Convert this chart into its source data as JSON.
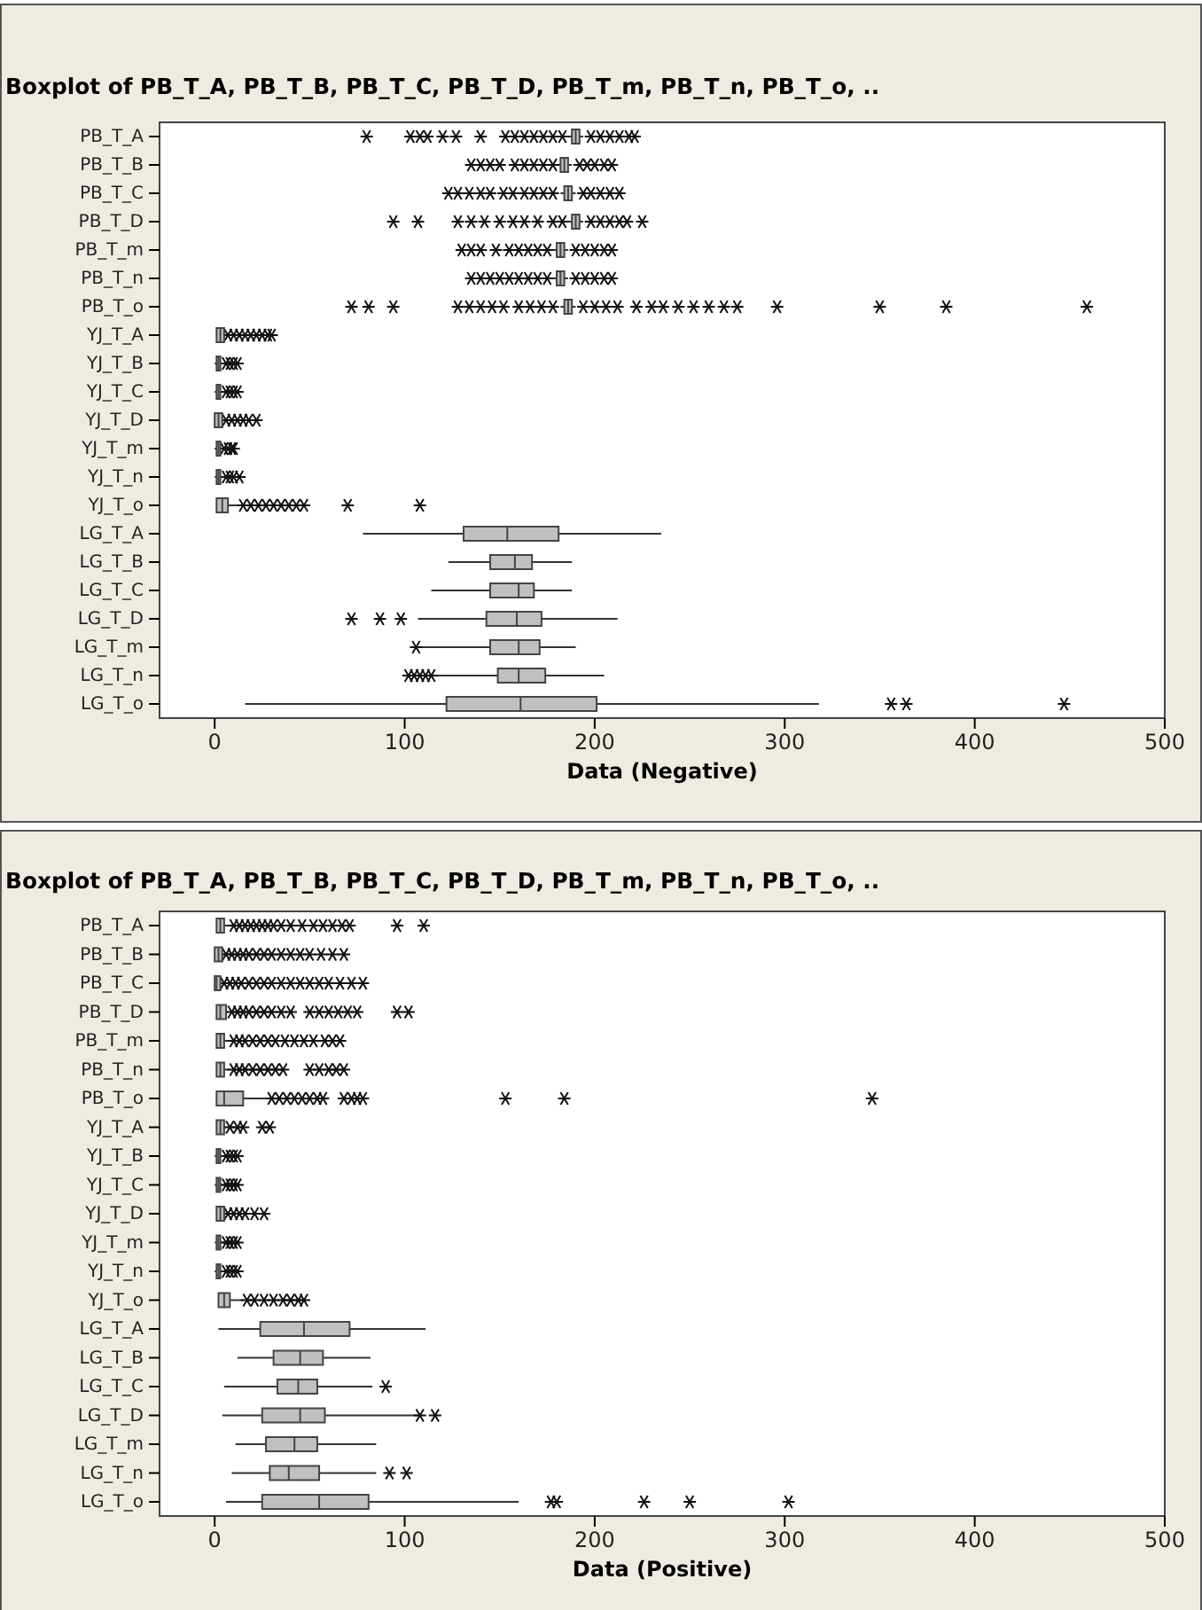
{
  "chart_data": [
    {
      "type": "box",
      "orientation": "horizontal",
      "title": "Boxplot of PB_T_A, PB_T_B, PB_T_C, PB_T_D, PB_T_m, PB_T_n, PB_T_o, ..",
      "xlabel": "Data (Negative)",
      "xlim": [
        -29,
        500
      ],
      "xticks": [
        0,
        100,
        200,
        300,
        400,
        500
      ],
      "categories": [
        "PB_T_A",
        "PB_T_B",
        "PB_T_C",
        "PB_T_D",
        "PB_T_m",
        "PB_T_n",
        "PB_T_o",
        "YJ_T_A",
        "YJ_T_B",
        "YJ_T_C",
        "YJ_T_D",
        "YJ_T_m",
        "YJ_T_n",
        "YJ_T_o",
        "LG_T_A",
        "LG_T_B",
        "LG_T_C",
        "LG_T_D",
        "LG_T_m",
        "LG_T_n",
        "LG_T_o"
      ],
      "boxes": [
        {
          "low": 186,
          "q1": 188,
          "median": 190,
          "q3": 192,
          "high": 194,
          "outliers": [
            80,
            103,
            108,
            112,
            120,
            127,
            140,
            153,
            158,
            163,
            168,
            173,
            178,
            183,
            198,
            203,
            208,
            213,
            218,
            221
          ]
        },
        {
          "low": 180,
          "q1": 182,
          "median": 184,
          "q3": 186,
          "high": 188,
          "outliers": [
            135,
            140,
            145,
            150,
            158,
            163,
            168,
            173,
            178,
            192,
            196,
            200,
            205,
            209
          ]
        },
        {
          "low": 182,
          "q1": 184,
          "median": 186,
          "q3": 188,
          "high": 190,
          "outliers": [
            123,
            128,
            134,
            140,
            145,
            152,
            157,
            163,
            168,
            173,
            178,
            194,
            198,
            203,
            208,
            213
          ]
        },
        {
          "low": 186,
          "q1": 188,
          "median": 190,
          "q3": 192,
          "high": 194,
          "outliers": [
            94,
            107,
            128,
            135,
            142,
            150,
            157,
            163,
            170,
            178,
            183,
            198,
            203,
            208,
            213,
            217,
            225
          ]
        },
        {
          "low": 178,
          "q1": 180,
          "median": 182,
          "q3": 184,
          "high": 186,
          "outliers": [
            130,
            135,
            140,
            148,
            155,
            160,
            165,
            170,
            175,
            190,
            195,
            200,
            205,
            209
          ]
        },
        {
          "low": 178,
          "q1": 180,
          "median": 182,
          "q3": 184,
          "high": 186,
          "outliers": [
            135,
            140,
            145,
            150,
            155,
            160,
            165,
            170,
            175,
            190,
            195,
            200,
            205,
            209
          ]
        },
        {
          "low": 182,
          "q1": 184,
          "median": 186,
          "q3": 188,
          "high": 190,
          "outliers": [
            72,
            81,
            94,
            128,
            134,
            140,
            146,
            152,
            160,
            166,
            172,
            178,
            194,
            200,
            206,
            212,
            222,
            230,
            236,
            244,
            252,
            260,
            268,
            275,
            296,
            350,
            385,
            459
          ]
        },
        {
          "low": 1,
          "q1": 1,
          "median": 3,
          "q3": 5,
          "high": 6,
          "outliers": [
            7,
            10,
            13,
            16,
            19,
            22,
            25,
            28,
            30
          ]
        },
        {
          "low": 0,
          "q1": 1,
          "median": 2,
          "q3": 3,
          "high": 5,
          "outliers": [
            6,
            8,
            10,
            12
          ]
        },
        {
          "low": 0,
          "q1": 1,
          "median": 2,
          "q3": 3,
          "high": 5,
          "outliers": [
            6,
            8,
            10,
            12
          ]
        },
        {
          "low": 0,
          "q1": 0,
          "median": 2,
          "q3": 4,
          "high": 5,
          "outliers": [
            6,
            9,
            12,
            15,
            18,
            22
          ]
        },
        {
          "low": 0,
          "q1": 1,
          "median": 2,
          "q3": 3,
          "high": 4,
          "outliers": [
            5,
            7,
            9,
            10
          ]
        },
        {
          "low": 0,
          "q1": 1,
          "median": 2,
          "q3": 3,
          "high": 5,
          "outliers": [
            6,
            8,
            10,
            13
          ]
        },
        {
          "low": 1,
          "q1": 1,
          "median": 4,
          "q3": 7,
          "high": 13,
          "outliers": [
            15,
            19,
            23,
            27,
            31,
            35,
            39,
            43,
            47,
            70,
            108
          ]
        },
        {
          "low": 78,
          "q1": 131,
          "median": 154,
          "q3": 181,
          "high": 235
        },
        {
          "low": 123,
          "q1": 145,
          "median": 158,
          "q3": 167,
          "high": 188
        },
        {
          "low": 114,
          "q1": 145,
          "median": 160,
          "q3": 168,
          "high": 188
        },
        {
          "low": 107,
          "q1": 143,
          "median": 159,
          "q3": 172,
          "high": 212,
          "outliers": [
            72,
            87,
            98
          ]
        },
        {
          "low": 109,
          "q1": 145,
          "median": 160,
          "q3": 171,
          "high": 190,
          "outliers": [
            106
          ]
        },
        {
          "low": 115,
          "q1": 149,
          "median": 160,
          "q3": 174,
          "high": 205,
          "outliers": [
            102,
            105,
            108,
            111,
            114
          ]
        },
        {
          "low": 16,
          "q1": 122,
          "median": 161,
          "q3": 201,
          "high": 318,
          "outliers": [
            356,
            364,
            447
          ]
        }
      ]
    },
    {
      "type": "box",
      "orientation": "horizontal",
      "title": "Boxplot of PB_T_A, PB_T_B, PB_T_C, PB_T_D, PB_T_m, PB_T_n, PB_T_o, ..",
      "xlabel": "Data (Positive)",
      "xlim": [
        -29,
        500
      ],
      "xticks": [
        0,
        100,
        200,
        300,
        400,
        500
      ],
      "categories": [
        "PB_T_A",
        "PB_T_B",
        "PB_T_C",
        "PB_T_D",
        "PB_T_m",
        "PB_T_n",
        "PB_T_o",
        "YJ_T_A",
        "YJ_T_B",
        "YJ_T_C",
        "YJ_T_D",
        "YJ_T_m",
        "YJ_T_n",
        "YJ_T_o",
        "LG_T_A",
        "LG_T_B",
        "LG_T_C",
        "LG_T_D",
        "LG_T_m",
        "LG_T_n",
        "LG_T_o"
      ],
      "boxes": [
        {
          "low": 1,
          "q1": 1,
          "median": 3,
          "q3": 5,
          "high": 8,
          "outliers": [
            10,
            13,
            16,
            19,
            22,
            25,
            28,
            31,
            35,
            40,
            46,
            52,
            57,
            62,
            67,
            71,
            96,
            110
          ]
        },
        {
          "low": 0,
          "q1": 0,
          "median": 2,
          "q3": 4,
          "high": 5,
          "outliers": [
            6,
            9,
            12,
            15,
            18,
            22,
            26,
            30,
            35,
            40,
            45,
            50,
            56,
            62,
            68
          ]
        },
        {
          "low": 0,
          "q1": 0,
          "median": 1,
          "q3": 3,
          "high": 4,
          "outliers": [
            5,
            8,
            11,
            14,
            18,
            22,
            26,
            30,
            35,
            40,
            45,
            50,
            55,
            60,
            66,
            72,
            78
          ]
        },
        {
          "low": 1,
          "q1": 1,
          "median": 3,
          "q3": 6,
          "high": 7,
          "outliers": [
            9,
            12,
            15,
            18,
            22,
            26,
            30,
            35,
            40,
            50,
            55,
            60,
            65,
            70,
            75,
            96,
            102
          ]
        },
        {
          "low": 1,
          "q1": 1,
          "median": 3,
          "q3": 5,
          "high": 8,
          "outliers": [
            10,
            13,
            16,
            20,
            24,
            28,
            32,
            37,
            42,
            47,
            52,
            58,
            62,
            66
          ]
        },
        {
          "low": 1,
          "q1": 1,
          "median": 3,
          "q3": 5,
          "high": 8,
          "outliers": [
            10,
            13,
            16,
            20,
            24,
            28,
            32,
            36,
            50,
            55,
            60,
            64,
            68
          ]
        },
        {
          "low": 1,
          "q1": 1,
          "median": 5,
          "q3": 15,
          "high": 28,
          "outliers": [
            30,
            34,
            38,
            42,
            46,
            50,
            54,
            57,
            68,
            72,
            75,
            78,
            153,
            184,
            346
          ]
        },
        {
          "low": 1,
          "q1": 1,
          "median": 3,
          "q3": 5,
          "high": 6,
          "outliers": [
            8,
            12,
            15,
            25,
            29
          ]
        },
        {
          "low": 0,
          "q1": 1,
          "median": 2,
          "q3": 3,
          "high": 5,
          "outliers": [
            6,
            8,
            10,
            12
          ]
        },
        {
          "low": 0,
          "q1": 1,
          "median": 2,
          "q3": 3,
          "high": 5,
          "outliers": [
            6,
            8,
            10,
            12
          ]
        },
        {
          "low": 1,
          "q1": 1,
          "median": 3,
          "q3": 5,
          "high": 6,
          "outliers": [
            7,
            10,
            13,
            16,
            21,
            26
          ]
        },
        {
          "low": 0,
          "q1": 1,
          "median": 2,
          "q3": 3,
          "high": 5,
          "outliers": [
            6,
            8,
            10,
            12
          ]
        },
        {
          "low": 0,
          "q1": 1,
          "median": 2,
          "q3": 3,
          "high": 5,
          "outliers": [
            6,
            8,
            10,
            12
          ]
        },
        {
          "low": 2,
          "q1": 2,
          "median": 5,
          "q3": 8,
          "high": 15,
          "outliers": [
            17,
            21,
            26,
            31,
            36,
            40,
            44,
            47
          ]
        },
        {
          "low": 2,
          "q1": 24,
          "median": 47,
          "q3": 71,
          "high": 111
        },
        {
          "low": 12,
          "q1": 31,
          "median": 45,
          "q3": 57,
          "high": 82
        },
        {
          "low": 5,
          "q1": 33,
          "median": 44,
          "q3": 54,
          "high": 83,
          "outliers": [
            90
          ]
        },
        {
          "low": 4,
          "q1": 25,
          "median": 45,
          "q3": 58,
          "high": 107,
          "outliers": [
            108,
            116
          ]
        },
        {
          "low": 11,
          "q1": 27,
          "median": 42,
          "q3": 54,
          "high": 85
        },
        {
          "low": 9,
          "q1": 29,
          "median": 39,
          "q3": 55,
          "high": 85,
          "outliers": [
            92,
            101
          ]
        },
        {
          "low": 6,
          "q1": 25,
          "median": 55,
          "q3": 81,
          "high": 160,
          "outliers": [
            177,
            180,
            226,
            250,
            302
          ]
        }
      ]
    }
  ]
}
